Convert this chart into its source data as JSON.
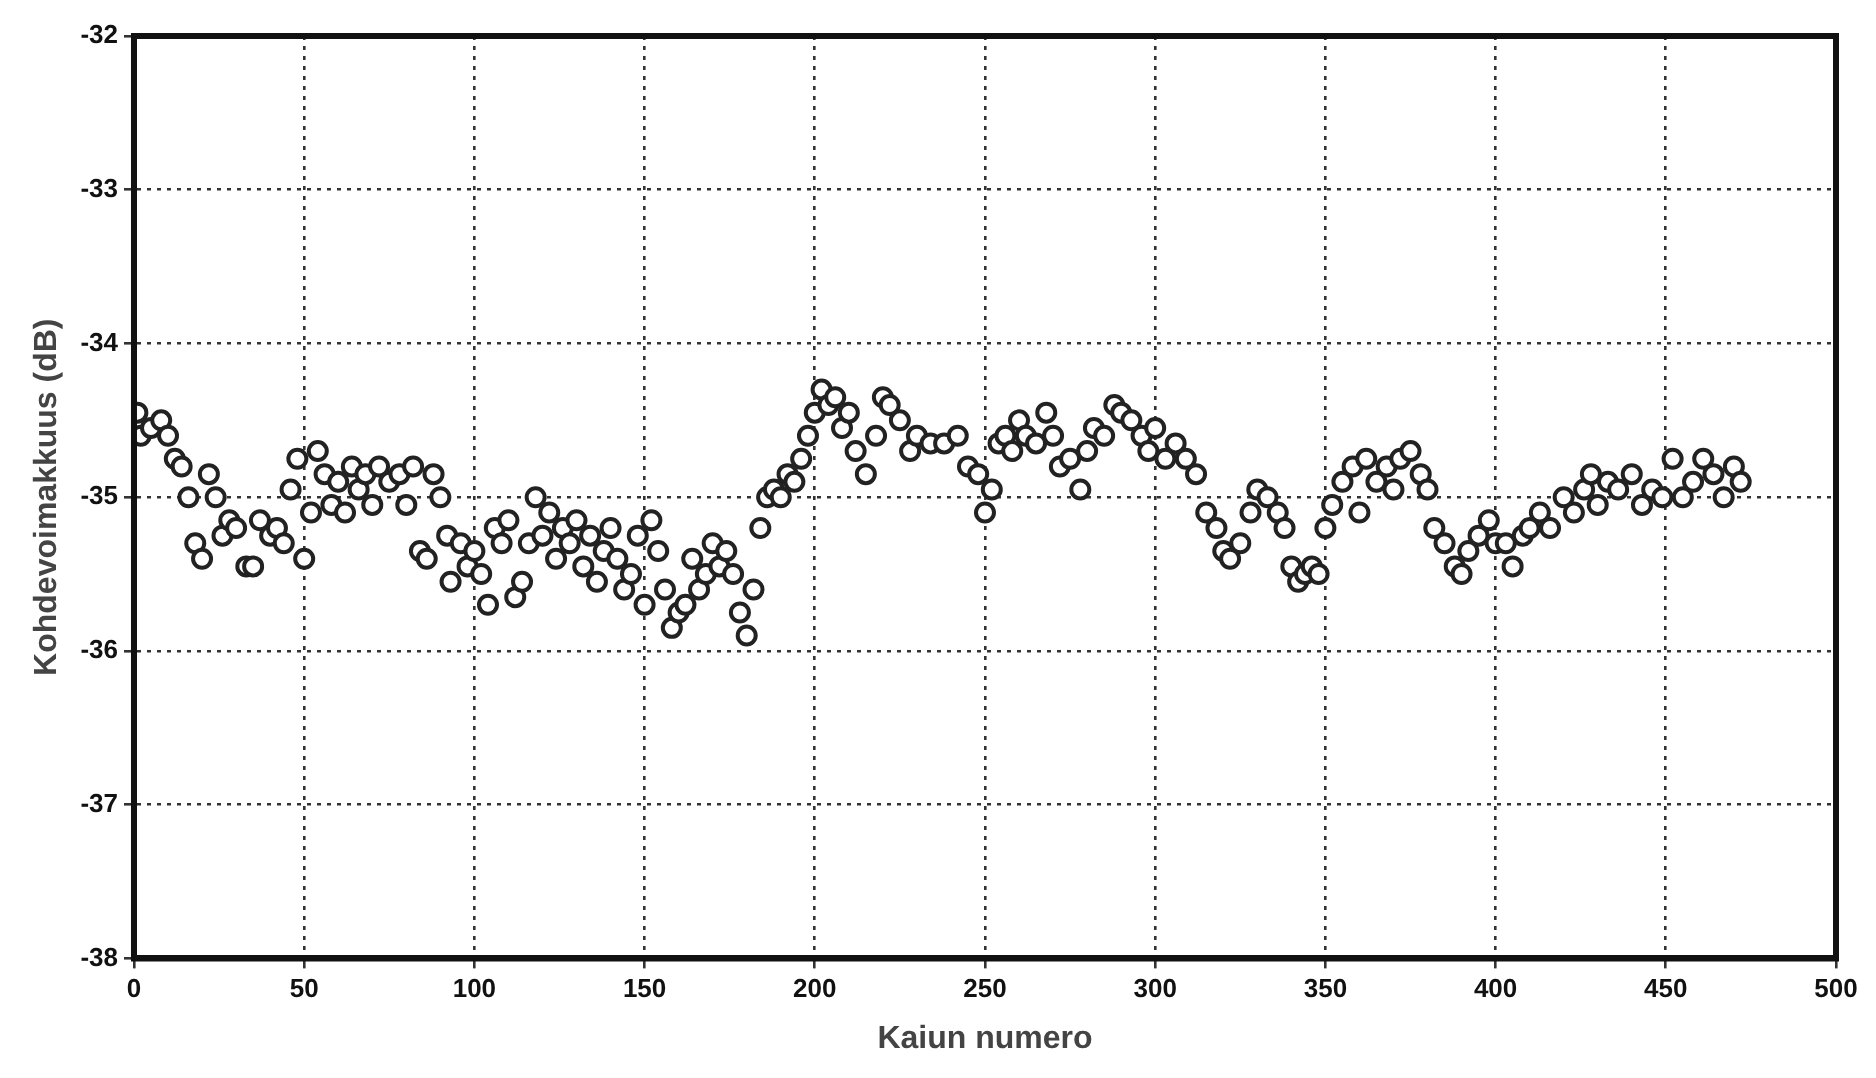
{
  "chart_data": {
    "type": "scatter",
    "xlabel": "Kaiun numero",
    "ylabel": "Kohdevoimakkuus (dB)",
    "xlim": [
      0,
      500
    ],
    "xticks": [
      0,
      50,
      100,
      150,
      200,
      250,
      300,
      350,
      400,
      450,
      500
    ],
    "ylim": [
      -38,
      -32
    ],
    "yticks": [
      -38,
      -37,
      -36,
      -35,
      -34,
      -33,
      -32
    ],
    "grid": true,
    "marker": "circle",
    "legend": false,
    "series": [
      {
        "color": "#222222",
        "x": [
          1,
          2,
          5,
          8,
          10,
          12,
          14,
          16,
          18,
          20,
          22,
          24,
          26,
          28,
          30,
          33,
          35,
          37,
          40,
          42,
          44,
          46,
          48,
          50,
          52,
          54,
          56,
          58,
          60,
          62,
          64,
          66,
          68,
          70,
          72,
          75,
          78,
          80,
          82,
          84,
          86,
          88,
          90,
          92,
          93,
          96,
          98,
          100,
          102,
          104,
          106,
          108,
          110,
          112,
          114,
          116,
          118,
          120,
          122,
          124,
          126,
          128,
          130,
          132,
          134,
          136,
          138,
          140,
          142,
          144,
          146,
          148,
          150,
          152,
          154,
          156,
          158,
          160,
          162,
          164,
          166,
          168,
          170,
          172,
          174,
          176,
          178,
          180,
          182,
          184,
          186,
          188,
          190,
          192,
          194,
          196,
          198,
          200,
          202,
          204,
          206,
          208,
          210,
          212,
          215,
          218,
          220,
          222,
          225,
          228,
          230,
          234,
          238,
          242,
          245,
          248,
          250,
          252,
          254,
          256,
          258,
          260,
          262,
          265,
          268,
          270,
          272,
          275,
          278,
          280,
          282,
          285,
          288,
          290,
          293,
          296,
          298,
          300,
          303,
          306,
          309,
          312,
          315,
          318,
          320,
          322,
          325,
          328,
          330,
          333,
          336,
          338,
          340,
          342,
          344,
          346,
          348,
          350,
          352,
          355,
          358,
          360,
          362,
          365,
          368,
          370,
          372,
          375,
          378,
          380,
          382,
          385,
          388,
          390,
          392,
          395,
          398,
          400,
          403,
          405,
          408,
          410,
          413,
          416,
          420,
          423,
          426,
          428,
          430,
          433,
          436,
          440,
          443,
          446,
          449,
          452,
          455,
          458,
          461,
          464,
          467,
          470,
          472
        ],
        "values": [
          -34.45,
          -34.6,
          -34.55,
          -34.5,
          -34.6,
          -34.75,
          -34.8,
          -35.0,
          -35.3,
          -35.4,
          -34.85,
          -35.0,
          -35.25,
          -35.15,
          -35.2,
          -35.45,
          -35.45,
          -35.15,
          -35.25,
          -35.2,
          -35.3,
          -34.95,
          -34.75,
          -35.4,
          -35.1,
          -34.7,
          -34.85,
          -35.05,
          -34.9,
          -35.1,
          -34.8,
          -34.95,
          -34.85,
          -35.05,
          -34.8,
          -34.9,
          -34.85,
          -35.05,
          -34.8,
          -35.35,
          -35.4,
          -34.85,
          -35.0,
          -35.25,
          -35.55,
          -35.3,
          -35.45,
          -35.35,
          -35.5,
          -35.7,
          -35.2,
          -35.3,
          -35.15,
          -35.65,
          -35.55,
          -35.3,
          -35.0,
          -35.25,
          -35.1,
          -35.4,
          -35.2,
          -35.3,
          -35.15,
          -35.45,
          -35.25,
          -35.55,
          -35.35,
          -35.2,
          -35.4,
          -35.6,
          -35.5,
          -35.25,
          -35.7,
          -35.15,
          -35.35,
          -35.6,
          -35.85,
          -35.75,
          -35.7,
          -35.4,
          -35.6,
          -35.5,
          -35.3,
          -35.45,
          -35.35,
          -35.5,
          -35.75,
          -35.9,
          -35.6,
          -35.2,
          -35.0,
          -34.95,
          -35.0,
          -34.85,
          -34.9,
          -34.75,
          -34.6,
          -34.45,
          -34.3,
          -34.4,
          -34.35,
          -34.55,
          -34.45,
          -34.7,
          -34.85,
          -34.6,
          -34.35,
          -34.4,
          -34.5,
          -34.7,
          -34.6,
          -34.65,
          -34.65,
          -34.6,
          -34.8,
          -34.85,
          -35.1,
          -34.95,
          -34.65,
          -34.6,
          -34.7,
          -34.5,
          -34.6,
          -34.65,
          -34.45,
          -34.6,
          -34.8,
          -34.75,
          -34.95,
          -34.7,
          -34.55,
          -34.6,
          -34.4,
          -34.45,
          -34.5,
          -34.6,
          -34.7,
          -34.55,
          -34.75,
          -34.65,
          -34.75,
          -34.85,
          -35.1,
          -35.2,
          -35.35,
          -35.4,
          -35.3,
          -35.1,
          -34.95,
          -35.0,
          -35.1,
          -35.2,
          -35.45,
          -35.55,
          -35.5,
          -35.45,
          -35.5,
          -35.2,
          -35.05,
          -34.9,
          -34.8,
          -35.1,
          -34.75,
          -34.9,
          -34.8,
          -34.95,
          -34.75,
          -34.7,
          -34.85,
          -34.95,
          -35.2,
          -35.3,
          -35.45,
          -35.5,
          -35.35,
          -35.25,
          -35.15,
          -35.3,
          -35.3,
          -35.45,
          -35.25,
          -35.2,
          -35.1,
          -35.2,
          -35.0,
          -35.1,
          -34.95,
          -34.85,
          -35.05,
          -34.9,
          -34.95,
          -34.85,
          -35.05,
          -34.95,
          -35.0,
          -34.75,
          -35.0,
          -34.9,
          -34.75,
          -34.85,
          -35.0,
          -34.8,
          -34.9
        ]
      }
    ]
  }
}
